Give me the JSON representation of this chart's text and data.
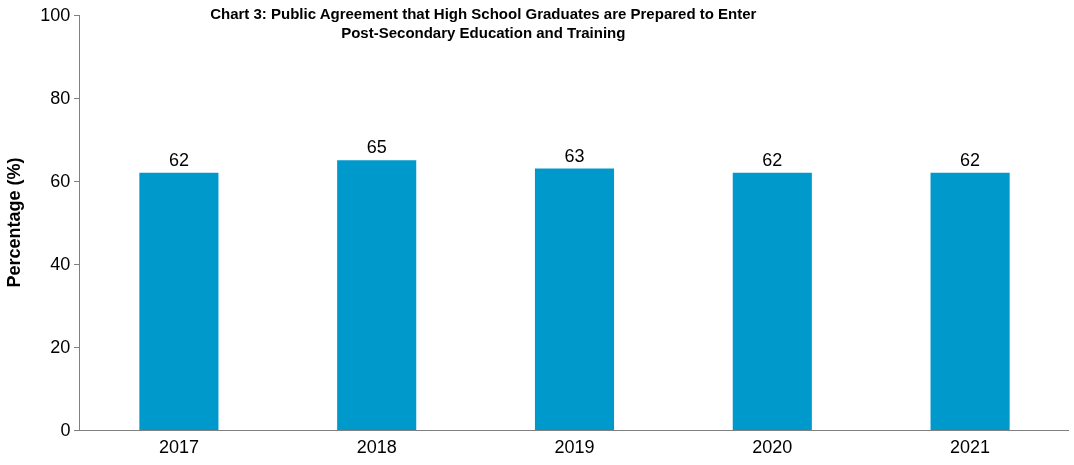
{
  "chart_data": {
    "type": "bar",
    "title": "Chart 3: Public Agreement that High School Graduates are Prepared to Enter\nPost-Secondary Education and Training",
    "ylabel": "Percentage (%)",
    "categories": [
      "2017",
      "2018",
      "2019",
      "2020",
      "2021"
    ],
    "values": [
      62,
      65,
      63,
      62,
      62
    ],
    "color": "#0099cc",
    "ylim": [
      0,
      100
    ],
    "yticks": [
      0,
      20,
      40,
      60,
      80,
      100
    ],
    "data_labels": true
  }
}
